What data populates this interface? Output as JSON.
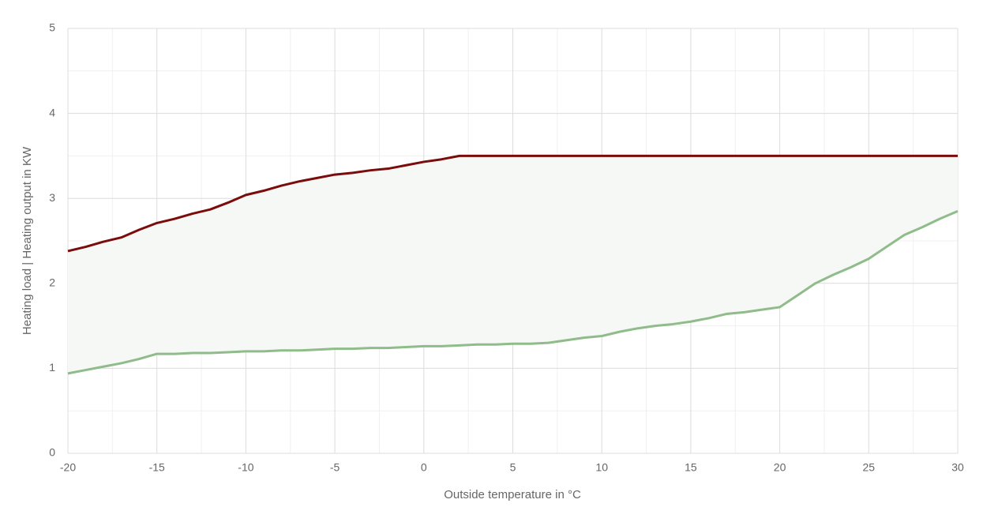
{
  "chart_data": {
    "type": "line",
    "x_label": "Outside temperature in °C",
    "y_label": "Heating load | Heating output in KW",
    "x": [
      -20,
      -19,
      -18,
      -17,
      -16,
      -15,
      -14,
      -13,
      -12,
      -11,
      -10,
      -9,
      -8,
      -7,
      -6,
      -5,
      -4,
      -3,
      -2,
      -1,
      0,
      1,
      2,
      3,
      4,
      5,
      6,
      7,
      8,
      9,
      10,
      11,
      12,
      13,
      14,
      15,
      16,
      17,
      18,
      19,
      20,
      21,
      22,
      23,
      24,
      25,
      26,
      27,
      28,
      29,
      30
    ],
    "series": [
      {
        "color": "#7b0c0c",
        "values": [
          2.38,
          2.43,
          2.49,
          2.54,
          2.63,
          2.71,
          2.76,
          2.82,
          2.87,
          2.95,
          3.04,
          3.09,
          3.15,
          3.2,
          3.24,
          3.28,
          3.3,
          3.33,
          3.35,
          3.39,
          3.43,
          3.46,
          3.5,
          3.5,
          3.5,
          3.5,
          3.5,
          3.5,
          3.5,
          3.5,
          3.5,
          3.5,
          3.5,
          3.5,
          3.5,
          3.5,
          3.5,
          3.5,
          3.5,
          3.5,
          3.5,
          3.5,
          3.5,
          3.5,
          3.5,
          3.5,
          3.5,
          3.5,
          3.5,
          3.5,
          3.5
        ]
      },
      {
        "color": "#8fbc8a",
        "values": [
          0.94,
          0.98,
          1.02,
          1.06,
          1.11,
          1.17,
          1.17,
          1.18,
          1.18,
          1.19,
          1.2,
          1.2,
          1.21,
          1.21,
          1.22,
          1.23,
          1.23,
          1.24,
          1.24,
          1.25,
          1.26,
          1.26,
          1.27,
          1.28,
          1.28,
          1.29,
          1.29,
          1.3,
          1.33,
          1.36,
          1.38,
          1.43,
          1.47,
          1.5,
          1.52,
          1.55,
          1.59,
          1.64,
          1.66,
          1.69,
          1.72,
          1.86,
          2.0,
          2.1,
          2.19,
          2.29,
          2.43,
          2.57,
          2.66,
          2.76,
          2.85
        ]
      }
    ],
    "fill_between": true,
    "fill_color": "#f6f8f5",
    "xlim": [
      -20,
      30
    ],
    "xticks": [
      -20,
      -15,
      -10,
      -5,
      0,
      5,
      10,
      15,
      20,
      25,
      30
    ],
    "ylim": [
      0,
      5
    ],
    "yticks": [
      0,
      1,
      2,
      3,
      4,
      5
    ],
    "grid": true,
    "minor_grid": true
  }
}
